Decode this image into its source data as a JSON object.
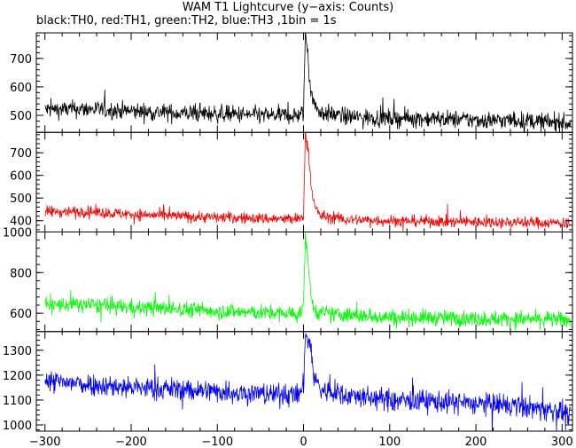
{
  "title": "WAM T1 Lightcurve (y−axis: Counts)",
  "subtitle": "black:TH0, red:TH1, green:TH2, blue:TH3 ,1bin = 1s",
  "chart_data": {
    "type": "line",
    "x_ticks": [
      "−300",
      "−200",
      "−100",
      "0",
      "100",
      "200",
      "300"
    ],
    "x_tick_values": [
      -300,
      -200,
      -100,
      0,
      100,
      200,
      300
    ],
    "xlim": [
      -310,
      312
    ],
    "x_values_rule": "one bin per second from -300 to 310",
    "panels": [
      {
        "series_label": "TH0",
        "color": "#000000",
        "ylim": [
          440,
          790
        ],
        "y_ticks": [
          "500",
          "600",
          "700"
        ],
        "y_tick_values": [
          500,
          600,
          700
        ],
        "keypoints": [
          [
            -300,
            520
          ],
          [
            -250,
            522
          ],
          [
            -200,
            515
          ],
          [
            -150,
            508
          ],
          [
            -100,
            505
          ],
          [
            -50,
            500
          ],
          [
            -5,
            500
          ],
          [
            0,
            505
          ],
          [
            2,
            790
          ],
          [
            5,
            720
          ],
          [
            8,
            600
          ],
          [
            12,
            540
          ],
          [
            20,
            510
          ],
          [
            50,
            495
          ],
          [
            100,
            490
          ],
          [
            150,
            488
          ],
          [
            200,
            484
          ],
          [
            250,
            482
          ],
          [
            300,
            475
          ],
          [
            310,
            470
          ]
        ],
        "noise": 22
      },
      {
        "series_label": "TH1",
        "color": "#ff0000",
        "ylim": [
          350,
          790
        ],
        "y_ticks": [
          "400",
          "500",
          "600",
          "700"
        ],
        "y_tick_values": [
          400,
          500,
          600,
          700
        ],
        "keypoints": [
          [
            -300,
            440
          ],
          [
            -250,
            440
          ],
          [
            -200,
            428
          ],
          [
            -150,
            420
          ],
          [
            -100,
            415
          ],
          [
            -50,
            410
          ],
          [
            -5,
            405
          ],
          [
            0,
            420
          ],
          [
            2,
            780
          ],
          [
            6,
            700
          ],
          [
            9,
            550
          ],
          [
            13,
            460
          ],
          [
            20,
            420
          ],
          [
            50,
            405
          ],
          [
            100,
            400
          ],
          [
            150,
            397
          ],
          [
            200,
            395
          ],
          [
            250,
            393
          ],
          [
            300,
            390
          ],
          [
            310,
            390
          ]
        ],
        "noise": 18
      },
      {
        "series_label": "TH2",
        "color": "#00ff00",
        "ylim": [
          510,
          1000
        ],
        "y_ticks": [
          "600",
          "800",
          "1000"
        ],
        "y_tick_values": [
          600,
          800,
          1000
        ],
        "keypoints": [
          [
            -300,
            640
          ],
          [
            -250,
            642
          ],
          [
            -200,
            630
          ],
          [
            -150,
            622
          ],
          [
            -100,
            612
          ],
          [
            -50,
            602
          ],
          [
            -5,
            598
          ],
          [
            0,
            620
          ],
          [
            2,
            990
          ],
          [
            5,
            880
          ],
          [
            8,
            700
          ],
          [
            12,
            620
          ],
          [
            20,
            600
          ],
          [
            50,
            590
          ],
          [
            100,
            582
          ],
          [
            150,
            578
          ],
          [
            200,
            574
          ],
          [
            250,
            572
          ],
          [
            300,
            568
          ],
          [
            310,
            565
          ]
        ],
        "noise": 28
      },
      {
        "series_label": "TH3",
        "color": "#0000ff",
        "ylim": [
          975,
          1375
        ],
        "y_ticks": [
          "1000",
          "1100",
          "1200",
          "1300"
        ],
        "y_tick_values": [
          1000,
          1100,
          1200,
          1300
        ],
        "keypoints": [
          [
            -300,
            1175
          ],
          [
            -250,
            1165
          ],
          [
            -200,
            1150
          ],
          [
            -150,
            1145
          ],
          [
            -100,
            1135
          ],
          [
            -50,
            1125
          ],
          [
            -5,
            1120
          ],
          [
            0,
            1160
          ],
          [
            2,
            1360
          ],
          [
            8,
            1320
          ],
          [
            12,
            1200
          ],
          [
            20,
            1140
          ],
          [
            50,
            1120
          ],
          [
            100,
            1100
          ],
          [
            150,
            1095
          ],
          [
            200,
            1085
          ],
          [
            250,
            1075
          ],
          [
            300,
            1055
          ],
          [
            310,
            1030
          ]
        ],
        "noise": 32
      }
    ]
  }
}
